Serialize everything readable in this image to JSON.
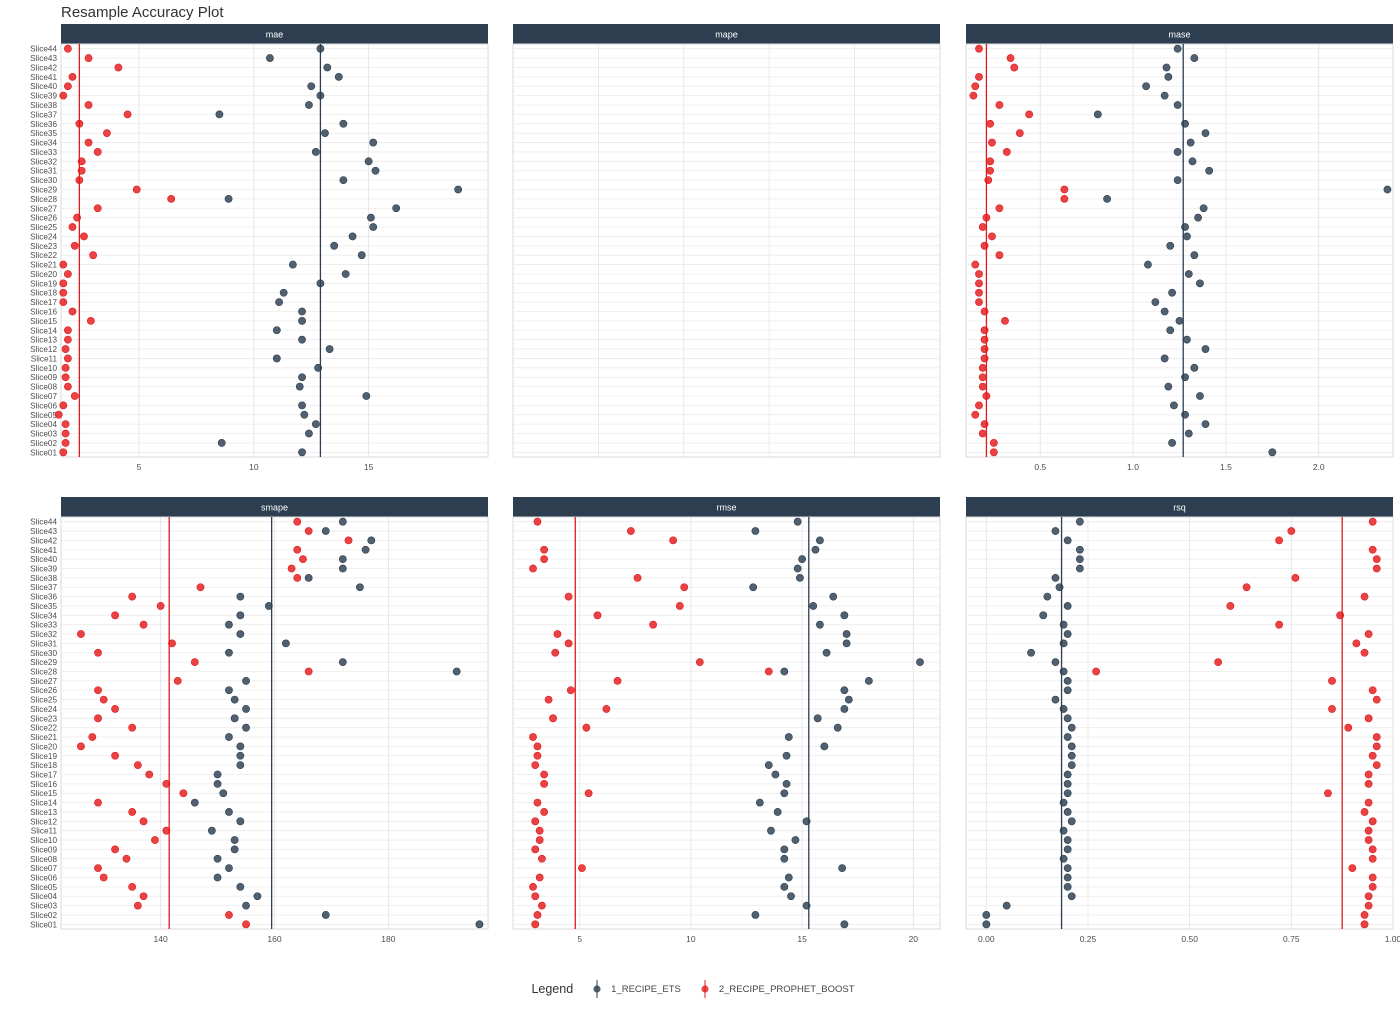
{
  "title": "Resample Accuracy Plot",
  "legend": {
    "title": "Legend",
    "entries": [
      {
        "label": "1_RECIPE_ETS",
        "color": "#2c3e50"
      },
      {
        "label": "2_RECIPE_PROPHET_BOOST",
        "color": "#e31a1c"
      }
    ]
  },
  "colors": {
    "strip": "#2c3e50",
    "ets": "#2c3e50",
    "prophet": "#e31a1c"
  },
  "chart_data": [
    {
      "type": "scatter",
      "metric": "mae",
      "xticks": [
        5,
        10,
        15
      ],
      "xlim": [
        1.6,
        20.2
      ],
      "means": [
        12.9,
        2.4
      ],
      "series": [
        {
          "name": "1_RECIPE_ETS",
          "values": [
            12.9,
            10.7,
            13.2,
            13.7,
            12.5,
            12.9,
            12.4,
            8.5,
            13.9,
            13.1,
            15.2,
            12.7,
            15.0,
            15.3,
            13.9,
            18.9,
            8.9,
            16.2,
            15.1,
            15.2,
            14.3,
            13.5,
            14.7,
            11.7,
            14.0,
            12.9,
            11.3,
            11.1,
            12.1,
            12.1,
            11.0,
            12.1,
            13.3,
            11.0,
            12.8,
            12.1,
            12.0,
            14.9,
            12.1,
            12.2,
            12.7,
            12.4,
            8.6,
            12.1
          ]
        },
        {
          "name": "2_RECIPE_PROPHET_BOOST",
          "values": [
            1.9,
            2.8,
            4.1,
            2.1,
            1.9,
            1.7,
            2.8,
            4.5,
            2.4,
            3.6,
            2.8,
            3.2,
            2.5,
            2.5,
            2.4,
            4.9,
            6.4,
            3.2,
            2.3,
            2.1,
            2.6,
            2.2,
            3.0,
            1.7,
            1.9,
            1.7,
            1.7,
            1.7,
            2.1,
            2.9,
            1.9,
            1.9,
            1.8,
            1.9,
            1.8,
            1.8,
            1.9,
            2.2,
            1.7,
            1.5,
            1.8,
            1.8,
            1.8,
            1.7
          ]
        }
      ]
    },
    {
      "type": "scatter",
      "metric": "mape",
      "xticks": [],
      "xlim": [
        0,
        1
      ],
      "means": [],
      "series": [
        {
          "name": "1_RECIPE_ETS",
          "values": []
        },
        {
          "name": "2_RECIPE_PROPHET_BOOST",
          "values": []
        }
      ]
    },
    {
      "type": "scatter",
      "metric": "mase",
      "xticks": [
        0.5,
        1.0,
        1.5,
        2.0
      ],
      "xlim": [
        0.1,
        2.4
      ],
      "means": [
        1.27,
        0.21
      ],
      "series": [
        {
          "name": "1_RECIPE_ETS",
          "values": [
            1.24,
            1.33,
            1.18,
            1.19,
            1.07,
            1.17,
            1.24,
            0.81,
            1.28,
            1.39,
            1.31,
            1.24,
            1.32,
            1.41,
            1.24,
            2.37,
            0.86,
            1.38,
            1.35,
            1.28,
            1.29,
            1.2,
            1.33,
            1.08,
            1.3,
            1.36,
            1.21,
            1.12,
            1.17,
            1.25,
            1.2,
            1.29,
            1.39,
            1.17,
            1.33,
            1.28,
            1.19,
            1.36,
            1.22,
            1.28,
            1.39,
            1.3,
            1.21,
            1.75
          ]
        },
        {
          "name": "2_RECIPE_PROPHET_BOOST",
          "values": [
            0.17,
            0.34,
            0.36,
            0.17,
            0.15,
            0.14,
            0.28,
            0.44,
            0.23,
            0.39,
            0.24,
            0.32,
            0.23,
            0.23,
            0.22,
            0.63,
            0.63,
            0.28,
            0.21,
            0.19,
            0.24,
            0.2,
            0.28,
            0.15,
            0.17,
            0.17,
            0.17,
            0.17,
            0.2,
            0.31,
            0.2,
            0.2,
            0.2,
            0.2,
            0.19,
            0.19,
            0.19,
            0.21,
            0.17,
            0.15,
            0.2,
            0.19,
            0.25,
            0.25
          ]
        }
      ]
    },
    {
      "type": "scatter",
      "metric": "smape",
      "xticks": [
        140,
        160,
        180
      ],
      "xlim": [
        122.5,
        197.5
      ],
      "means": [
        159.5,
        141.5
      ],
      "series": [
        {
          "name": "1_RECIPE_ETS",
          "values": [
            172,
            169,
            177,
            176,
            172,
            172,
            166,
            175,
            154,
            159,
            154,
            152,
            154,
            162,
            152,
            172,
            192,
            155,
            152,
            153,
            155,
            153,
            155,
            152,
            154,
            154,
            154,
            150,
            150,
            151,
            146,
            152,
            154,
            149,
            153,
            153,
            150,
            152,
            150,
            154,
            157,
            155,
            169,
            196
          ]
        },
        {
          "name": "2_RECIPE_PROPHET_BOOST",
          "values": [
            164,
            166,
            173,
            164,
            165,
            163,
            164,
            147,
            135,
            140,
            132,
            137,
            126,
            142,
            129,
            146,
            166,
            143,
            129,
            130,
            132,
            129,
            135,
            128,
            126,
            132,
            136,
            138,
            141,
            144,
            129,
            135,
            137,
            141,
            139,
            132,
            134,
            129,
            130,
            135,
            137,
            136,
            152,
            155
          ]
        }
      ]
    },
    {
      "type": "scatter",
      "metric": "rmse",
      "xticks": [
        5,
        10,
        15,
        20
      ],
      "xlim": [
        2.0,
        21.2
      ],
      "means": [
        15.3,
        4.8
      ],
      "series": [
        {
          "name": "1_RECIPE_ETS",
          "values": [
            14.8,
            12.9,
            15.8,
            15.6,
            15.0,
            14.8,
            14.9,
            12.8,
            16.4,
            15.5,
            16.9,
            15.8,
            17.0,
            17.0,
            16.1,
            20.3,
            14.2,
            18.0,
            16.9,
            17.1,
            16.9,
            15.7,
            16.6,
            14.4,
            16.0,
            14.3,
            13.5,
            13.8,
            14.3,
            14.2,
            13.1,
            13.9,
            15.2,
            13.6,
            14.7,
            14.2,
            14.2,
            16.8,
            14.4,
            14.2,
            14.5,
            15.2,
            12.9,
            16.9
          ]
        },
        {
          "name": "2_RECIPE_PROPHET_BOOST",
          "values": [
            3.1,
            7.3,
            9.2,
            3.4,
            3.4,
            2.9,
            7.6,
            9.7,
            4.5,
            9.5,
            5.8,
            8.3,
            4.0,
            4.5,
            3.9,
            10.4,
            13.5,
            6.7,
            4.6,
            3.6,
            6.2,
            3.8,
            5.3,
            2.9,
            3.1,
            3.1,
            3.0,
            3.4,
            3.4,
            5.4,
            3.1,
            3.4,
            3.0,
            3.2,
            3.2,
            3.0,
            3.3,
            5.1,
            3.2,
            2.9,
            3.0,
            3.3,
            3.1,
            3.0
          ]
        }
      ]
    },
    {
      "type": "scatter",
      "metric": "rsq",
      "xticks": [
        0.0,
        0.25,
        0.5,
        0.75,
        1.0
      ],
      "xlim": [
        -0.05,
        1.0
      ],
      "means": [
        0.185,
        0.875
      ],
      "series": [
        {
          "name": "1_RECIPE_ETS",
          "values": [
            0.23,
            0.17,
            0.2,
            0.23,
            0.23,
            0.23,
            0.17,
            0.18,
            0.15,
            0.2,
            0.14,
            0.19,
            0.2,
            0.19,
            0.11,
            0.17,
            0.19,
            0.2,
            0.2,
            0.17,
            0.19,
            0.2,
            0.21,
            0.2,
            0.21,
            0.21,
            0.21,
            0.2,
            0.2,
            0.2,
            0.19,
            0.2,
            0.21,
            0.19,
            0.2,
            0.2,
            0.19,
            0.2,
            0.2,
            0.2,
            0.21,
            0.05,
            0.0,
            0.0
          ]
        },
        {
          "name": "2_RECIPE_PROPHET_BOOST",
          "values": [
            0.95,
            0.75,
            0.72,
            0.95,
            0.96,
            0.96,
            0.76,
            0.64,
            0.93,
            0.6,
            0.87,
            0.72,
            0.94,
            0.91,
            0.93,
            0.57,
            0.27,
            0.85,
            0.95,
            0.96,
            0.85,
            0.94,
            0.89,
            0.96,
            0.96,
            0.95,
            0.96,
            0.94,
            0.94,
            0.84,
            0.94,
            0.93,
            0.95,
            0.94,
            0.94,
            0.95,
            0.95,
            0.9,
            0.95,
            0.95,
            0.94,
            0.94,
            0.93,
            0.93
          ]
        }
      ]
    }
  ],
  "slices": [
    "Slice44",
    "Slice43",
    "Slice42",
    "Slice41",
    "Slice40",
    "Slice39",
    "Slice38",
    "Slice37",
    "Slice36",
    "Slice35",
    "Slice34",
    "Slice33",
    "Slice32",
    "Slice31",
    "Slice30",
    "Slice29",
    "Slice28",
    "Slice27",
    "Slice26",
    "Slice25",
    "Slice24",
    "Slice23",
    "Slice22",
    "Slice21",
    "Slice20",
    "Slice19",
    "Slice18",
    "Slice17",
    "Slice16",
    "Slice15",
    "Slice14",
    "Slice13",
    "Slice12",
    "Slice11",
    "Slice10",
    "Slice09",
    "Slice08",
    "Slice07",
    "Slice06",
    "Slice05",
    "Slice04",
    "Slice03",
    "Slice02",
    "Slice01"
  ]
}
